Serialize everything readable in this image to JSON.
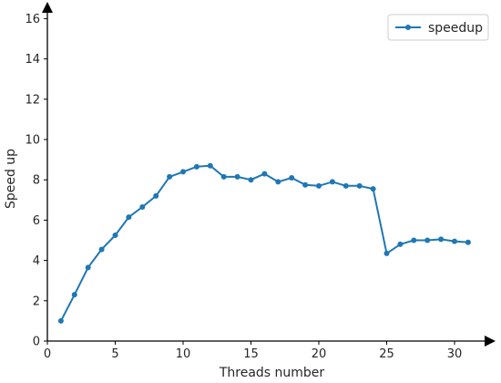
{
  "chart_data": {
    "type": "line",
    "xlabel": "Threads number",
    "ylabel": "Speed up",
    "xlim": [
      0,
      33
    ],
    "ylim": [
      0,
      16
    ],
    "xticks": [
      0,
      5,
      10,
      15,
      20,
      25,
      30
    ],
    "yticks": [
      0,
      2,
      4,
      6,
      8,
      10,
      12,
      14,
      16
    ],
    "grid": false,
    "legend_position": "top-right",
    "series": [
      {
        "name": "speedup",
        "color": "#1f77b4",
        "marker": "circle",
        "x": [
          1,
          2,
          3,
          4,
          5,
          6,
          7,
          8,
          9,
          10,
          11,
          12,
          13,
          14,
          15,
          16,
          17,
          18,
          19,
          20,
          21,
          22,
          23,
          24,
          25,
          26,
          27,
          28,
          29,
          30,
          31
        ],
        "y": [
          1.0,
          2.3,
          3.65,
          4.55,
          5.25,
          6.15,
          6.65,
          7.2,
          8.15,
          8.4,
          8.65,
          8.7,
          8.15,
          8.15,
          8.0,
          8.3,
          7.9,
          8.1,
          7.75,
          7.7,
          7.9,
          7.7,
          7.7,
          7.55,
          4.35,
          4.8,
          5.0,
          5.0,
          5.05,
          4.95,
          4.9
        ]
      }
    ]
  }
}
